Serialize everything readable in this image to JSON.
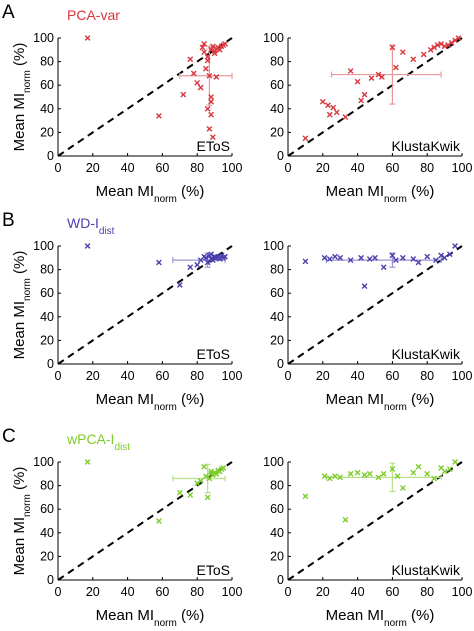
{
  "colors": {
    "A": "#d9363e",
    "B": "#4b3fae",
    "C": "#7ccc2b",
    "errorbar_A": "#e89a9a",
    "errorbar_B": "#9b93d1",
    "errorbar_C": "#b7e08a"
  },
  "rows": [
    {
      "letter": "A",
      "method_main": "PCA-var",
      "method_sub": "",
      "color_key": "A"
    },
    {
      "letter": "B",
      "method_main": "WD-I",
      "method_sub": "dist",
      "color_key": "B"
    },
    {
      "letter": "C",
      "method_main": "wPCA-I",
      "method_sub": "dist",
      "color_key": "C"
    }
  ],
  "labels": {
    "xlabel_main": "Mean MI",
    "xlabel_sub": "norm",
    "xlabel_unit": "(%)",
    "ylabel_main": "Mean MI",
    "ylabel_sub": "norm",
    "ylabel_unit": "(%)",
    "left_corner": "EToS",
    "right_corner": "KlustaKwik"
  },
  "chart_data": [
    {
      "type": "scatter",
      "row": "A",
      "panel": "left",
      "corner_label": "EToS",
      "series_name": "PCA-var",
      "xlim": [
        0,
        100
      ],
      "ylim": [
        0,
        100
      ],
      "xticks": [
        0,
        20,
        40,
        60,
        80,
        100
      ],
      "yticks": [
        0,
        20,
        40,
        60,
        80,
        100
      ],
      "diagonal": true,
      "x": [
        17,
        58,
        72,
        76,
        78,
        80,
        82,
        83,
        84,
        84,
        85,
        86,
        86,
        86,
        87,
        87,
        88,
        88,
        88,
        88,
        89,
        89,
        90,
        90,
        91,
        91,
        92,
        93,
        94,
        95,
        96
      ],
      "y": [
        100,
        34,
        52,
        82,
        70,
        62,
        58,
        92,
        95,
        88,
        74,
        40,
        81,
        84,
        68,
        23,
        50,
        90,
        35,
        46,
        93,
        16,
        87,
        89,
        67,
        91,
        92,
        90,
        93,
        94,
        95
      ],
      "errorbar": {
        "x": 87,
        "y": 68,
        "xerr": [
          17,
          13
        ],
        "yerr": [
          25,
          25
        ]
      }
    },
    {
      "type": "scatter",
      "row": "A",
      "panel": "right",
      "corner_label": "KlustaKwik",
      "series_name": "PCA-var",
      "xlim": [
        0,
        100
      ],
      "ylim": [
        0,
        100
      ],
      "xticks": [
        0,
        20,
        40,
        60,
        80,
        100
      ],
      "yticks": [
        0,
        20,
        40,
        60,
        80,
        100
      ],
      "diagonal": true,
      "x": [
        10,
        20,
        23,
        24,
        26,
        28,
        33,
        36,
        40,
        42,
        44,
        48,
        52,
        54,
        60,
        62,
        66,
        72,
        78,
        82,
        84,
        86,
        88,
        90,
        92,
        94,
        96,
        98
      ],
      "y": [
        15,
        46,
        43,
        35,
        41,
        37,
        33,
        72,
        63,
        47,
        52,
        66,
        69,
        67,
        92,
        75,
        88,
        82,
        86,
        90,
        92,
        94,
        95,
        93,
        94,
        96,
        98,
        100
      ],
      "errorbar": {
        "x": 60,
        "y": 69,
        "xerr": [
          35,
          28
        ],
        "yerr": [
          25,
          25
        ]
      }
    },
    {
      "type": "scatter",
      "row": "B",
      "panel": "left",
      "corner_label": "EToS",
      "series_name": "WD-I dist",
      "xlim": [
        0,
        100
      ],
      "ylim": [
        0,
        100
      ],
      "xticks": [
        0,
        20,
        40,
        60,
        80,
        100
      ],
      "yticks": [
        0,
        20,
        40,
        60,
        80,
        100
      ],
      "diagonal": true,
      "x": [
        17,
        58,
        70,
        76,
        80,
        82,
        84,
        85,
        86,
        87,
        88,
        88,
        89,
        90,
        90,
        91,
        92,
        93,
        94,
        95,
        96
      ],
      "y": [
        100,
        86,
        67,
        82,
        84,
        88,
        91,
        90,
        86,
        92,
        89,
        93,
        88,
        91,
        90,
        90,
        91,
        89,
        92,
        90,
        91
      ],
      "errorbar": {
        "x": 86,
        "y": 88,
        "xerr": [
          20,
          10
        ],
        "yerr": [
          6,
          6
        ]
      }
    },
    {
      "type": "scatter",
      "row": "B",
      "panel": "right",
      "corner_label": "KlustaKwik",
      "series_name": "WD-I dist",
      "xlim": [
        0,
        100
      ],
      "ylim": [
        0,
        100
      ],
      "xticks": [
        0,
        20,
        40,
        60,
        80,
        100
      ],
      "yticks": [
        0,
        20,
        40,
        60,
        80,
        100
      ],
      "diagonal": true,
      "x": [
        10,
        21,
        24,
        27,
        30,
        36,
        42,
        44,
        47,
        50,
        55,
        60,
        62,
        66,
        72,
        75,
        80,
        85,
        88,
        90,
        93,
        96
      ],
      "y": [
        87,
        90,
        89,
        91,
        90,
        88,
        90,
        66,
        89,
        90,
        82,
        92,
        88,
        90,
        89,
        86,
        91,
        88,
        92,
        90,
        93,
        100
      ],
      "errorbar": {
        "x": 60,
        "y": 88,
        "xerr": [
          38,
          28
        ],
        "yerr": [
          6,
          6
        ]
      }
    },
    {
      "type": "scatter",
      "row": "C",
      "panel": "left",
      "corner_label": "EToS",
      "series_name": "wPCA-I dist",
      "xlim": [
        0,
        100
      ],
      "ylim": [
        0,
        100
      ],
      "xticks": [
        0,
        20,
        40,
        60,
        80,
        100
      ],
      "yticks": [
        0,
        20,
        40,
        60,
        80,
        100
      ],
      "diagonal": true,
      "x": [
        17,
        58,
        70,
        76,
        80,
        82,
        84,
        85,
        86,
        87,
        88,
        88,
        89,
        90,
        91,
        92,
        93,
        94,
        95
      ],
      "y": [
        100,
        50,
        74,
        72,
        82,
        84,
        96,
        88,
        70,
        86,
        90,
        92,
        89,
        91,
        90,
        93,
        92,
        94,
        95
      ],
      "errorbar": {
        "x": 86,
        "y": 86,
        "xerr": [
          20,
          10
        ],
        "yerr": [
          12,
          12
        ]
      }
    },
    {
      "type": "scatter",
      "row": "C",
      "panel": "right",
      "corner_label": "KlustaKwik",
      "series_name": "wPCA-I dist",
      "xlim": [
        0,
        100
      ],
      "ylim": [
        0,
        100
      ],
      "xticks": [
        0,
        20,
        40,
        60,
        80,
        100
      ],
      "yticks": [
        0,
        20,
        40,
        60,
        80,
        100
      ],
      "diagonal": true,
      "x": [
        10,
        21,
        24,
        27,
        30,
        33,
        36,
        40,
        44,
        47,
        52,
        55,
        60,
        63,
        66,
        72,
        75,
        80,
        84,
        88,
        90,
        93,
        96
      ],
      "y": [
        71,
        88,
        86,
        88,
        87,
        51,
        90,
        91,
        89,
        90,
        87,
        90,
        94,
        88,
        78,
        91,
        96,
        90,
        86,
        95,
        92,
        94,
        100
      ],
      "errorbar": {
        "x": 60,
        "y": 87,
        "xerr": [
          38,
          28
        ],
        "yerr": [
          12,
          12
        ]
      }
    }
  ]
}
